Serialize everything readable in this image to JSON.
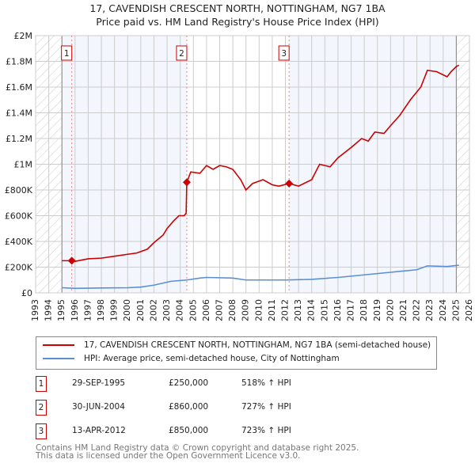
{
  "chart_data": {
    "type": "line",
    "title": "17, CAVENDISH CRESCENT NORTH, NOTTINGHAM, NG7 1BA",
    "subtitle": "Price paid vs. HM Land Registry's House Price Index (HPI)",
    "xlim": [
      1993,
      2026
    ],
    "ylim": [
      0,
      2000000
    ],
    "grid": true,
    "x_ticks": [
      "1993",
      "1994",
      "1995",
      "1996",
      "1997",
      "1998",
      "1999",
      "2000",
      "2001",
      "2002",
      "2003",
      "2004",
      "2005",
      "2006",
      "2007",
      "2008",
      "2009",
      "2010",
      "2011",
      "2012",
      "2013",
      "2014",
      "2015",
      "2016",
      "2017",
      "2018",
      "2019",
      "2020",
      "2021",
      "2022",
      "2023",
      "2024",
      "2025",
      "2026"
    ],
    "y_ticks": [
      {
        "v": 0,
        "label": "£0"
      },
      {
        "v": 200000,
        "label": "£200K"
      },
      {
        "v": 400000,
        "label": "£400K"
      },
      {
        "v": 600000,
        "label": "£600K"
      },
      {
        "v": 800000,
        "label": "£800K"
      },
      {
        "v": 1000000,
        "label": "£1M"
      },
      {
        "v": 1200000,
        "label": "£1.2M"
      },
      {
        "v": 1400000,
        "label": "£1.4M"
      },
      {
        "v": 1600000,
        "label": "£1.6M"
      },
      {
        "v": 1800000,
        "label": "£1.8M"
      },
      {
        "v": 2000000,
        "label": "£2M"
      }
    ],
    "series": [
      {
        "name": "17, CAVENDISH CRESCENT NORTH, NOTTINGHAM, NG7 1BA (semi-detached house)",
        "color": "#cc0000",
        "x": [
          1995,
          1995.75,
          1996,
          1997,
          1998,
          1999,
          2000,
          2000.7,
          2001.5,
          2002,
          2002.7,
          2003,
          2003.5,
          2003.9,
          2004.3,
          2004.45,
          2004.5,
          2004.8,
          2005.5,
          2006,
          2006.5,
          2007,
          2007.5,
          2008,
          2008.6,
          2009,
          2009.5,
          2010.3,
          2011,
          2011.5,
          2012.28,
          2013,
          2014,
          2014.6,
          2015.4,
          2016,
          2017,
          2017.8,
          2018.3,
          2018.8,
          2019.5,
          2020,
          2020.7,
          2021.5,
          2022.3,
          2022.8,
          2023.5,
          2024.3,
          2024.6,
          2025,
          2025.2
        ],
        "y": [
          250000,
          250000,
          245000,
          265000,
          270000,
          285000,
          300000,
          310000,
          340000,
          390000,
          450000,
          500000,
          560000,
          600000,
          600000,
          620000,
          860000,
          940000,
          930000,
          990000,
          960000,
          990000,
          980000,
          960000,
          880000,
          800000,
          850000,
          880000,
          840000,
          830000,
          850000,
          830000,
          880000,
          1000000,
          980000,
          1050000,
          1130000,
          1200000,
          1180000,
          1250000,
          1240000,
          1300000,
          1380000,
          1500000,
          1600000,
          1730000,
          1720000,
          1680000,
          1720000,
          1760000,
          1770000
        ]
      },
      {
        "name": "HPI: Average price, semi-detached house, City of Nottingham",
        "color": "#5b8fd4",
        "x": [
          1995,
          1996,
          1998,
          2000,
          2001,
          2002,
          2003.3,
          2004.5,
          2005.5,
          2006,
          2008,
          2009,
          2010,
          2012,
          2014,
          2016,
          2018,
          2020,
          2022,
          2022.8,
          2024.3,
          2025.2
        ],
        "y": [
          40000,
          35000,
          38000,
          40000,
          45000,
          60000,
          90000,
          100000,
          115000,
          120000,
          115000,
          100000,
          100000,
          100000,
          105000,
          120000,
          140000,
          160000,
          180000,
          210000,
          205000,
          215000
        ]
      }
    ],
    "sales": [
      {
        "n": "1",
        "x": 1995.75,
        "y": 250000,
        "date": "29-SEP-1995",
        "price": "£250,000",
        "hpi": "518% ↑ HPI"
      },
      {
        "n": "2",
        "x": 2004.5,
        "y": 860000,
        "date": "30-JUN-2004",
        "price": "£860,000",
        "hpi": "727% ↑ HPI"
      },
      {
        "n": "3",
        "x": 2012.28,
        "y": 850000,
        "date": "13-APR-2012",
        "price": "£850,000",
        "hpi": "723% ↑ HPI"
      }
    ],
    "data_start": 1995,
    "data_end": 2025
  },
  "footer": [
    "Contains HM Land Registry data © Crown copyright and database right 2025.",
    "This data is licensed under the Open Government Licence v3.0."
  ]
}
